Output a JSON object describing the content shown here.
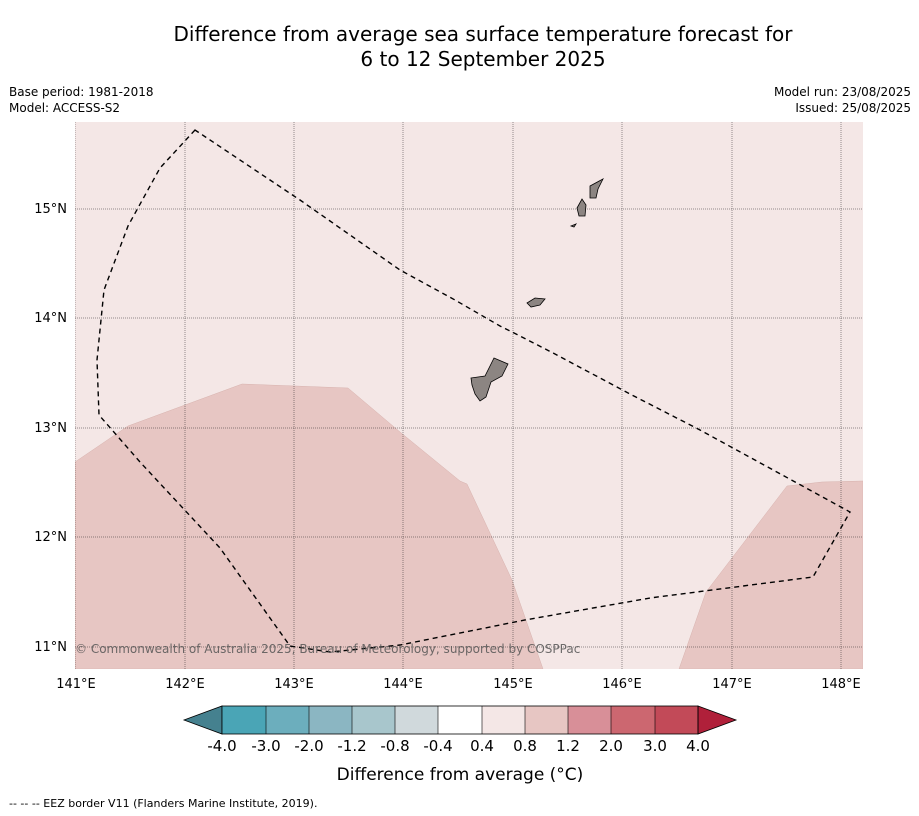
{
  "title_line1": "Difference from average sea surface temperature forecast for",
  "title_line2": "6 to 12 September 2025",
  "left_info": {
    "base_period": "Base period: 1981-2018",
    "model": "Model: ACCESS-S2"
  },
  "right_info": {
    "model_run": "Model run: 23/08/2025",
    "issued": "Issued: 25/08/2025"
  },
  "map": {
    "lon_labels": [
      "141°E",
      "142°E",
      "143°E",
      "144°E",
      "145°E",
      "146°E",
      "147°E",
      "148°E"
    ],
    "lat_labels": [
      "15°N",
      "14°N",
      "13°N",
      "12°N",
      "11°N"
    ],
    "copyright": "© Commonwealth of Australia 2025, Bureau of Meteorology, supported by COSPPac",
    "colors": {
      "band_0_4_0_8": "#f4e7e6",
      "band_0_8_1_2": "#e7c6c3",
      "land": "#8c8582"
    }
  },
  "colorbar": {
    "tick_labels": [
      "-4.0",
      "-3.0",
      "-2.0",
      "-1.2",
      "-0.8",
      "-0.4",
      "0.4",
      "0.8",
      "1.2",
      "2.0",
      "3.0",
      "4.0"
    ],
    "colors": [
      "#45818f",
      "#4aa5b6",
      "#6caebd",
      "#8bb6c2",
      "#a8c6cc",
      "#d0d9dc",
      "#ffffff",
      "#f4e7e6",
      "#e7c6c3",
      "#d88f98",
      "#cc6770",
      "#c24a58",
      "#b0203a"
    ],
    "label": "Difference from average (°C)"
  },
  "footnote": "-- -- -- EEZ border V11 (Flanders Marine Institute, 2019)."
}
